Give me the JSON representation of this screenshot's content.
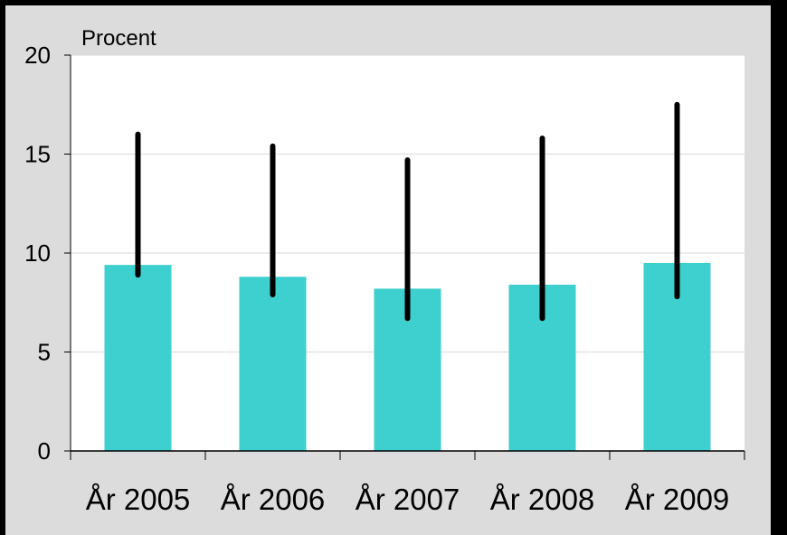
{
  "chart_data": {
    "type": "bar",
    "title": "",
    "ylabel": "Procent",
    "xlabel": "",
    "categories": [
      "År 2005",
      "År 2006",
      "År 2007",
      "År 2008",
      "År 2009"
    ],
    "values": [
      9.4,
      8.8,
      8.2,
      8.4,
      9.5
    ],
    "error_low": [
      8.9,
      7.9,
      6.7,
      6.7,
      7.8
    ],
    "error_high": [
      16.0,
      15.4,
      14.7,
      15.8,
      17.5
    ],
    "ylim": [
      0,
      20
    ],
    "yticks": [
      "0",
      "5",
      "10",
      "15",
      "20"
    ],
    "grid": true,
    "colors": {
      "bar": "#3ecfcf",
      "error_bar": "#000000",
      "plot_bg": "#ffffff",
      "frame_bg": "#dcdcdc"
    }
  }
}
